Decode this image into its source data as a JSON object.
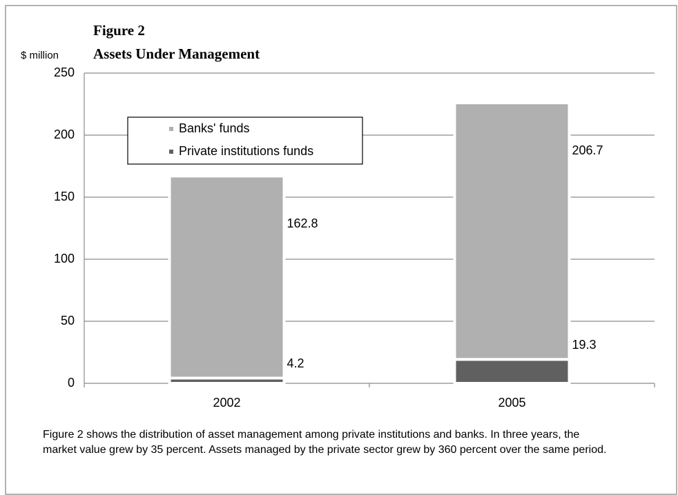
{
  "chart_data": {
    "type": "stacked_bar",
    "title": "Figure 2",
    "subtitle": "Assets Under Management",
    "y_label": "$ million",
    "categories": [
      "2002",
      "2005"
    ],
    "series": [
      {
        "name": "Banks' funds",
        "color": "#b0b0b0",
        "values": [
          162.8,
          206.7
        ]
      },
      {
        "name": "Private institutions funds",
        "color": "#606060",
        "values": [
          4.2,
          19.3
        ]
      }
    ],
    "ylim": [
      0,
      250
    ],
    "yticks": [
      0,
      50,
      100,
      150,
      200,
      250
    ],
    "grid": true,
    "legend": "upper left",
    "caption": "Figure 2 shows the distribution of asset management among private institutions and banks. In three years, the market value grew by 35 percent. Assets managed by the private sector grew by 360 percent over the same period."
  }
}
